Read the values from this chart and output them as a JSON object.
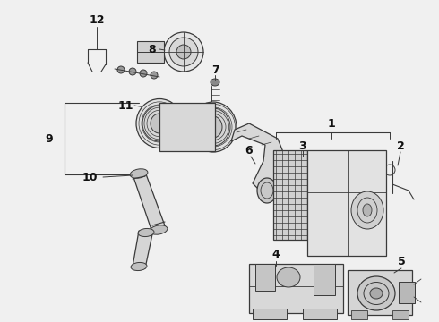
{
  "bg_color": "#f0f0f0",
  "line_color": "#3a3a3a",
  "label_color": "#111111",
  "figsize": [
    4.9,
    3.6
  ],
  "dpi": 100,
  "xlim": [
    0,
    490
  ],
  "ylim": [
    0,
    360
  ]
}
